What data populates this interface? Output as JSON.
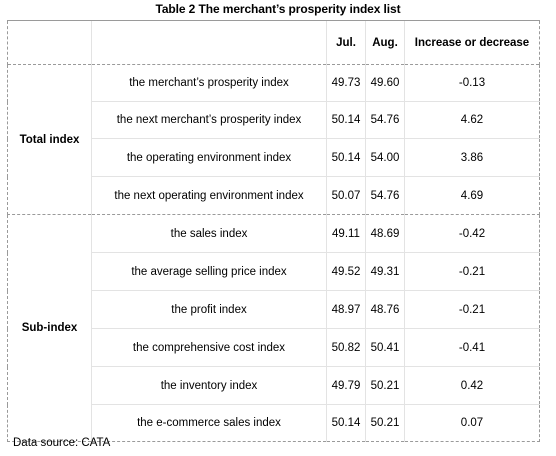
{
  "title": "Table 2 The merchant’s prosperity index list",
  "headers": {
    "blank1": "",
    "blank2": "",
    "jul": "Jul.",
    "aug": "Aug.",
    "change": "Increase or decrease"
  },
  "groups": [
    {
      "label": "Total index",
      "rows": [
        {
          "name": "the merchant’s prosperity index",
          "jul": "49.73",
          "aug": "49.60",
          "change": "-0.13"
        },
        {
          "name": "the next merchant’s prosperity index",
          "jul": "50.14",
          "aug": "54.76",
          "change": "4.62"
        },
        {
          "name": "the operating environment index",
          "jul": "50.14",
          "aug": "54.00",
          "change": "3.86"
        },
        {
          "name": "the next operating environment index",
          "jul": "50.07",
          "aug": "54.76",
          "change": "4.69"
        }
      ]
    },
    {
      "label": "Sub-index",
      "rows": [
        {
          "name": "the sales index",
          "jul": "49.11",
          "aug": "48.69",
          "change": "-0.42"
        },
        {
          "name": "the average selling price index",
          "jul": "49.52",
          "aug": "49.31",
          "change": "-0.21"
        },
        {
          "name": "the profit index",
          "jul": "48.97",
          "aug": "48.76",
          "change": "-0.21"
        },
        {
          "name": "the comprehensive cost index",
          "jul": "50.82",
          "aug": "50.41",
          "change": "-0.41"
        },
        {
          "name": "the inventory index",
          "jul": "49.79",
          "aug": "50.21",
          "change": "0.42"
        },
        {
          "name": "the e-commerce sales index",
          "jul": "50.14",
          "aug": "50.21",
          "change": "0.07"
        }
      ]
    }
  ],
  "source": "Data source: CATA"
}
